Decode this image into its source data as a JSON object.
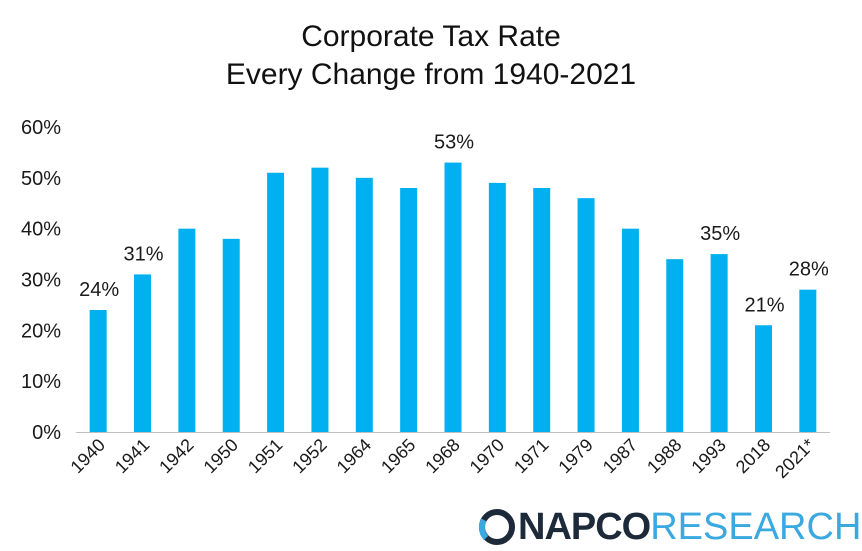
{
  "chart_data": {
    "type": "bar",
    "title": [
      "Corporate Tax Rate",
      "Every Change from 1940-2021"
    ],
    "categories": [
      "1940",
      "1941",
      "1942",
      "1950",
      "1951",
      "1952",
      "1964",
      "1965",
      "1968",
      "1970",
      "1971",
      "1979",
      "1987",
      "1988",
      "1993",
      "2018",
      "2021*"
    ],
    "values": [
      24,
      31,
      40,
      38,
      51,
      52,
      50,
      48,
      53,
      49,
      48,
      46,
      40,
      34,
      35,
      21,
      28
    ],
    "data_labels": [
      "24%",
      "31%",
      "",
      "",
      "",
      "",
      "",
      "",
      "53%",
      "",
      "",
      "",
      "",
      "",
      "35%",
      "21%",
      "28%"
    ],
    "ylim": [
      0,
      60
    ],
    "yticks": [
      "0%",
      "10%",
      "20%",
      "30%",
      "40%",
      "50%",
      "60%"
    ],
    "grid": false,
    "bar_color": "#00b0f0"
  },
  "logo": {
    "napco": "NAPCO",
    "research": "RESEARCH",
    "napco_color": "#1c2a3a",
    "research_color": "#3aa9e0"
  }
}
